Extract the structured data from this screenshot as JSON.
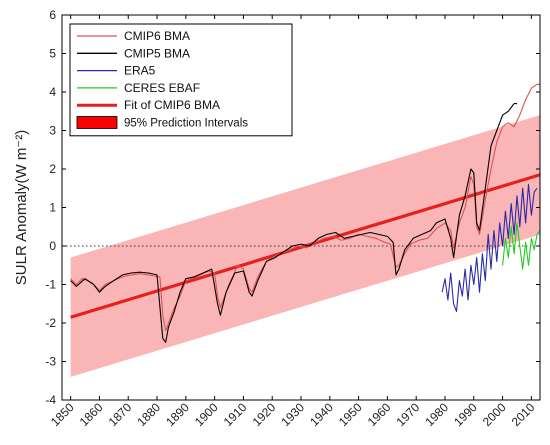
{
  "chart_data": {
    "type": "line",
    "title": "",
    "xlabel": "",
    "ylabel": "SULR Anomaly(W m⁻²)",
    "xlim": [
      1847,
      2013
    ],
    "ylim": [
      -4,
      6
    ],
    "xticks": [
      1850,
      1860,
      1870,
      1880,
      1890,
      1900,
      1910,
      1920,
      1930,
      1940,
      1950,
      1960,
      1970,
      1980,
      1990,
      2000,
      2010
    ],
    "yticks": [
      -4,
      -3,
      -2,
      -1,
      0,
      1,
      2,
      3,
      4,
      5,
      6
    ],
    "zero_line": "dotted",
    "grid": false,
    "legend_position": "top-left",
    "legend": [
      {
        "label": "CMIP6 BMA",
        "color": "#e0524f",
        "kind": "line"
      },
      {
        "label": "CMIP5 BMA",
        "color": "#000000",
        "kind": "line"
      },
      {
        "label": "ERA5",
        "color": "#2a2aa8",
        "kind": "line"
      },
      {
        "label": "CERES EBAF",
        "color": "#22cc22",
        "kind": "line"
      },
      {
        "label": "Fit of CMIP6 BMA",
        "color": "#e62020",
        "kind": "thick-line"
      },
      {
        "label": "95% Prediction Intervals",
        "color": "#ff0000",
        "kind": "patch"
      }
    ],
    "fit": {
      "x": [
        1850,
        2013
      ],
      "y": [
        -1.85,
        1.85
      ],
      "color": "#e62020"
    },
    "prediction_interval": {
      "x": [
        1850,
        2013
      ],
      "lower": [
        -3.4,
        0.3
      ],
      "upper": [
        -0.3,
        3.4
      ],
      "color": "#f9a9a9"
    },
    "series": [
      {
        "name": "CMIP6 BMA",
        "color": "#e0524f",
        "points": [
          [
            1850,
            -0.85
          ],
          [
            1852,
            -1.0
          ],
          [
            1854,
            -0.85
          ],
          [
            1856,
            -0.9
          ],
          [
            1858,
            -1.0
          ],
          [
            1860,
            -1.15
          ],
          [
            1862,
            -1.0
          ],
          [
            1865,
            -0.9
          ],
          [
            1868,
            -0.8
          ],
          [
            1871,
            -0.75
          ],
          [
            1874,
            -0.72
          ],
          [
            1877,
            -0.75
          ],
          [
            1879,
            -0.78
          ],
          [
            1881,
            -0.8
          ],
          [
            1882,
            -1.8
          ],
          [
            1883,
            -2.2
          ],
          [
            1884,
            -2.0
          ],
          [
            1886,
            -1.6
          ],
          [
            1888,
            -1.3
          ],
          [
            1890,
            -0.9
          ],
          [
            1892,
            -0.85
          ],
          [
            1895,
            -0.75
          ],
          [
            1898,
            -0.65
          ],
          [
            1900,
            -0.7
          ],
          [
            1901,
            -1.3
          ],
          [
            1902,
            -1.6
          ],
          [
            1903,
            -1.4
          ],
          [
            1905,
            -1.0
          ],
          [
            1908,
            -0.5
          ],
          [
            1910,
            -0.6
          ],
          [
            1912,
            -1.1
          ],
          [
            1913,
            -1.2
          ],
          [
            1915,
            -0.8
          ],
          [
            1918,
            -0.4
          ],
          [
            1920,
            -0.3
          ],
          [
            1923,
            -0.2
          ],
          [
            1926,
            -0.1
          ],
          [
            1929,
            0.0
          ],
          [
            1932,
            -0.05
          ],
          [
            1935,
            0.1
          ],
          [
            1938,
            0.2
          ],
          [
            1941,
            0.25
          ],
          [
            1944,
            0.15
          ],
          [
            1947,
            0.2
          ],
          [
            1950,
            0.3
          ],
          [
            1953,
            0.25
          ],
          [
            1956,
            0.2
          ],
          [
            1959,
            0.1
          ],
          [
            1961,
            0.05
          ],
          [
            1963,
            -0.55
          ],
          [
            1964,
            -0.5
          ],
          [
            1966,
            -0.2
          ],
          [
            1968,
            0.05
          ],
          [
            1971,
            0.15
          ],
          [
            1974,
            0.2
          ],
          [
            1977,
            0.45
          ],
          [
            1980,
            0.6
          ],
          [
            1982,
            0.4
          ],
          [
            1983,
            -0.05
          ],
          [
            1985,
            0.6
          ],
          [
            1987,
            1.0
          ],
          [
            1989,
            1.8
          ],
          [
            1990,
            1.6
          ],
          [
            1991,
            0.5
          ],
          [
            1992,
            0.3
          ],
          [
            1994,
            1.2
          ],
          [
            1996,
            2.0
          ],
          [
            1998,
            2.7
          ],
          [
            2000,
            3.1
          ],
          [
            2002,
            3.2
          ],
          [
            2004,
            3.1
          ],
          [
            2006,
            3.4
          ],
          [
            2008,
            3.8
          ],
          [
            2010,
            4.1
          ],
          [
            2012,
            4.2
          ],
          [
            2013,
            4.2
          ]
        ]
      },
      {
        "name": "CMIP5 BMA",
        "color": "#000000",
        "points": [
          [
            1850,
            -0.9
          ],
          [
            1852,
            -1.05
          ],
          [
            1855,
            -0.85
          ],
          [
            1858,
            -1.0
          ],
          [
            1860,
            -1.2
          ],
          [
            1862,
            -1.05
          ],
          [
            1865,
            -0.9
          ],
          [
            1868,
            -0.75
          ],
          [
            1871,
            -0.7
          ],
          [
            1874,
            -0.68
          ],
          [
            1877,
            -0.7
          ],
          [
            1880,
            -0.75
          ],
          [
            1882,
            -2.4
          ],
          [
            1883,
            -2.5
          ],
          [
            1884,
            -2.1
          ],
          [
            1886,
            -1.7
          ],
          [
            1888,
            -1.2
          ],
          [
            1890,
            -0.85
          ],
          [
            1893,
            -0.8
          ],
          [
            1896,
            -0.7
          ],
          [
            1899,
            -0.6
          ],
          [
            1901,
            -1.5
          ],
          [
            1902,
            -1.8
          ],
          [
            1904,
            -1.2
          ],
          [
            1907,
            -0.7
          ],
          [
            1910,
            -0.65
          ],
          [
            1912,
            -1.2
          ],
          [
            1913,
            -1.3
          ],
          [
            1915,
            -0.9
          ],
          [
            1918,
            -0.4
          ],
          [
            1921,
            -0.3
          ],
          [
            1924,
            -0.15
          ],
          [
            1927,
            0.0
          ],
          [
            1930,
            0.05
          ],
          [
            1933,
            0.0
          ],
          [
            1936,
            0.2
          ],
          [
            1939,
            0.3
          ],
          [
            1942,
            0.35
          ],
          [
            1945,
            0.2
          ],
          [
            1948,
            0.25
          ],
          [
            1951,
            0.3
          ],
          [
            1954,
            0.35
          ],
          [
            1957,
            0.3
          ],
          [
            1960,
            0.25
          ],
          [
            1962,
            0.1
          ],
          [
            1963,
            -0.75
          ],
          [
            1964,
            -0.6
          ],
          [
            1966,
            -0.1
          ],
          [
            1969,
            0.2
          ],
          [
            1972,
            0.3
          ],
          [
            1975,
            0.4
          ],
          [
            1977,
            0.6
          ],
          [
            1980,
            0.7
          ],
          [
            1982,
            0.2
          ],
          [
            1983,
            -0.3
          ],
          [
            1985,
            0.8
          ],
          [
            1987,
            1.3
          ],
          [
            1989,
            2.0
          ],
          [
            1990,
            1.9
          ],
          [
            1991,
            0.6
          ],
          [
            1992,
            0.4
          ],
          [
            1994,
            1.5
          ],
          [
            1996,
            2.6
          ],
          [
            1998,
            3.0
          ],
          [
            2000,
            3.4
          ],
          [
            2002,
            3.5
          ],
          [
            2004,
            3.7
          ],
          [
            2005,
            3.7
          ]
        ]
      },
      {
        "name": "ERA5",
        "color": "#2a2aa8",
        "points": [
          [
            1979,
            -1.2
          ],
          [
            1980,
            -0.85
          ],
          [
            1981,
            -1.4
          ],
          [
            1982,
            -0.7
          ],
          [
            1983,
            -1.5
          ],
          [
            1984,
            -1.7
          ],
          [
            1985,
            -0.9
          ],
          [
            1986,
            -1.3
          ],
          [
            1987,
            -0.6
          ],
          [
            1988,
            -1.4
          ],
          [
            1989,
            -0.5
          ],
          [
            1990,
            -1.0
          ],
          [
            1991,
            -0.3
          ],
          [
            1992,
            -1.2
          ],
          [
            1993,
            -0.2
          ],
          [
            1994,
            -0.9
          ],
          [
            1995,
            0.3
          ],
          [
            1996,
            -0.6
          ],
          [
            1997,
            0.4
          ],
          [
            1998,
            -0.4
          ],
          [
            1999,
            0.6
          ],
          [
            2000,
            0.0
          ],
          [
            2001,
            0.9
          ],
          [
            2002,
            0.2
          ],
          [
            2003,
            1.1
          ],
          [
            2004,
            0.3
          ],
          [
            2005,
            1.3
          ],
          [
            2006,
            0.5
          ],
          [
            2007,
            1.5
          ],
          [
            2008,
            0.6
          ],
          [
            2009,
            1.6
          ],
          [
            2010,
            0.8
          ],
          [
            2011,
            1.4
          ],
          [
            2012,
            1.5
          ]
        ]
      },
      {
        "name": "CERES EBAF",
        "color": "#22cc22",
        "points": [
          [
            2000,
            -0.5
          ],
          [
            2001,
            0.2
          ],
          [
            2002,
            -0.3
          ],
          [
            2003,
            0.5
          ],
          [
            2004,
            -0.2
          ],
          [
            2005,
            0.6
          ],
          [
            2006,
            0.0
          ],
          [
            2007,
            -0.6
          ],
          [
            2008,
            0.1
          ],
          [
            2009,
            -0.5
          ],
          [
            2010,
            0.2
          ],
          [
            2011,
            -0.1
          ],
          [
            2012,
            0.3
          ],
          [
            2013,
            0.4
          ]
        ]
      }
    ]
  }
}
